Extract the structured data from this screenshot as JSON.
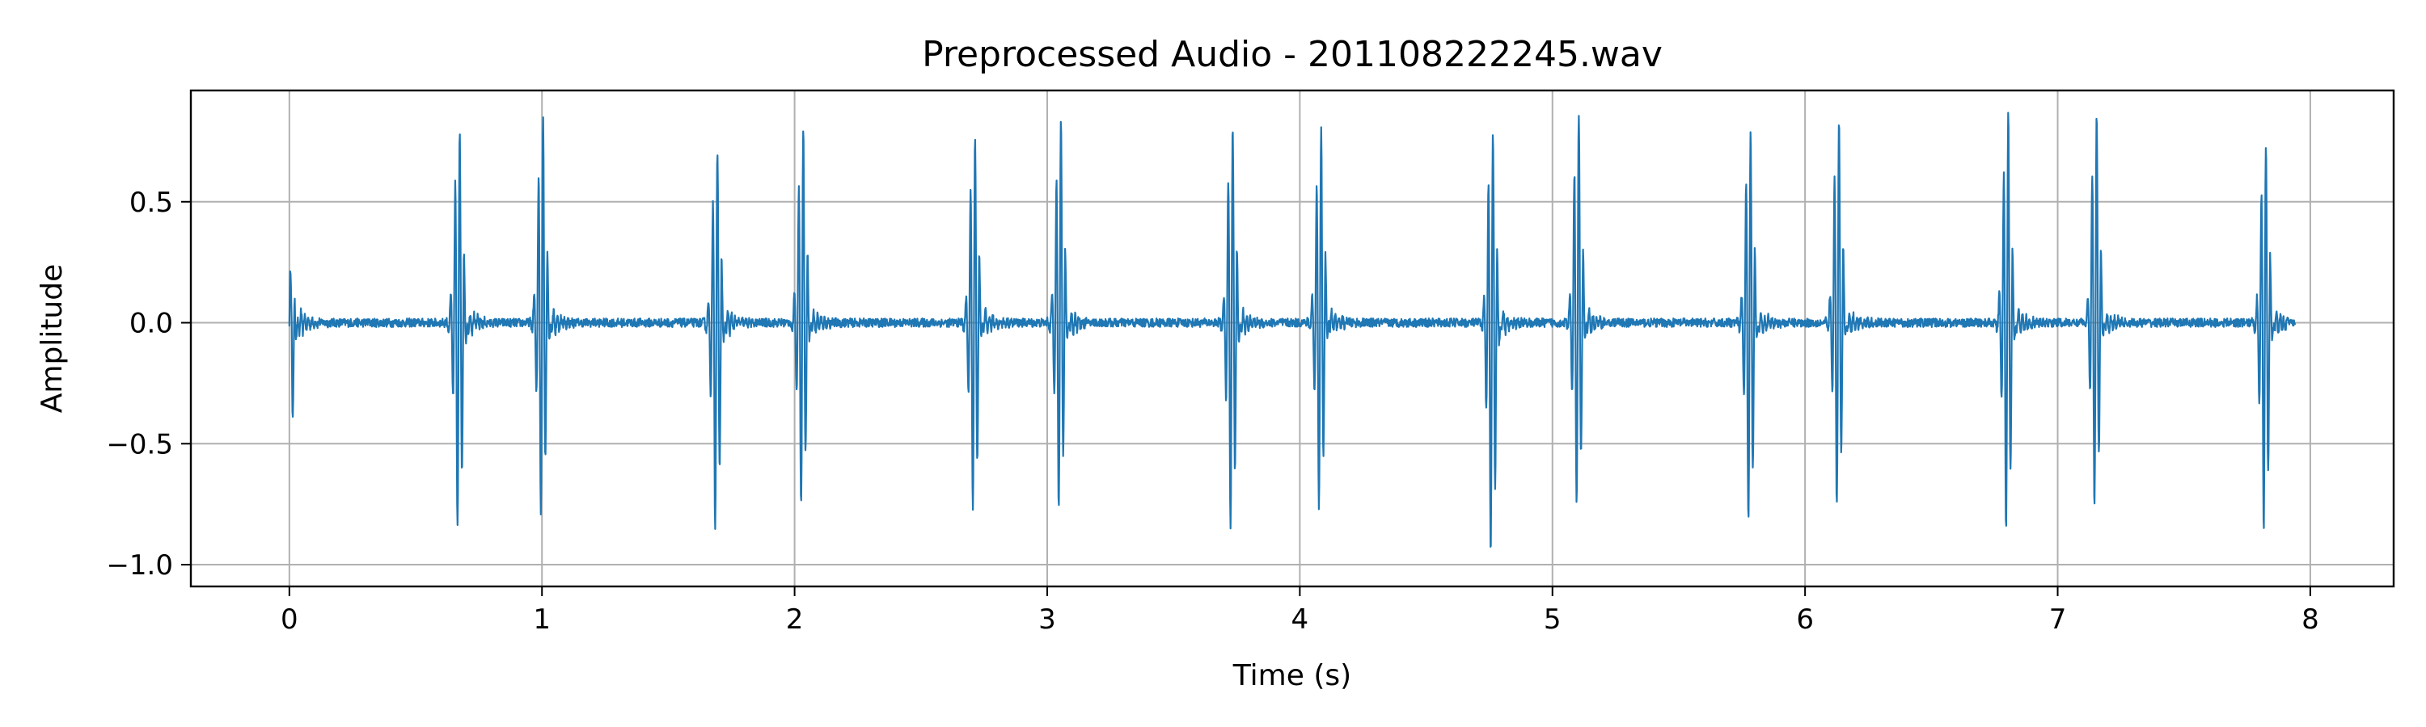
{
  "chart_data": {
    "type": "line",
    "title": "Preprocessed Audio - 201108222245.wav",
    "xlabel": "Time (s)",
    "ylabel": "Amplitude",
    "xlim": [
      -0.39,
      8.33
    ],
    "ylim": [
      -1.09,
      0.96
    ],
    "xticks": [
      0,
      1,
      2,
      3,
      4,
      5,
      6,
      7,
      8
    ],
    "xtick_labels": [
      "0",
      "1",
      "2",
      "3",
      "4",
      "5",
      "6",
      "7",
      "8"
    ],
    "yticks": [
      0.5,
      0.0,
      -0.5,
      -1.0
    ],
    "ytick_labels": [
      "0.5",
      "0.0",
      "−0.5",
      "−1.0"
    ],
    "grid": true,
    "line_color": "#1f77b4",
    "duration_s": 7.94,
    "series": [
      {
        "beats": [
          {
            "t": 0.0,
            "peak": 0.23,
            "trough": -0.59
          },
          {
            "t": 0.67,
            "peak": 0.83,
            "trough": -0.88
          },
          {
            "t": 1.0,
            "peak": 0.89,
            "trough": -0.81
          },
          {
            "t": 1.69,
            "peak": 0.72,
            "trough": -0.88
          },
          {
            "t": 2.03,
            "peak": 0.83,
            "trough": -0.79
          },
          {
            "t": 2.71,
            "peak": 0.79,
            "trough": -0.82
          },
          {
            "t": 3.05,
            "peak": 0.88,
            "trough": -0.8
          },
          {
            "t": 3.73,
            "peak": 0.85,
            "trough": -0.88
          },
          {
            "t": 4.08,
            "peak": 0.83,
            "trough": -0.79
          },
          {
            "t": 4.76,
            "peak": 0.81,
            "trough": -1.0
          },
          {
            "t": 5.1,
            "peak": 0.9,
            "trough": -0.79
          },
          {
            "t": 5.78,
            "peak": 0.84,
            "trough": -0.85
          },
          {
            "t": 6.13,
            "peak": 0.88,
            "trough": -0.79
          },
          {
            "t": 6.8,
            "peak": 0.9,
            "trough": -0.89
          },
          {
            "t": 7.15,
            "peak": 0.9,
            "trough": -0.79
          },
          {
            "t": 7.82,
            "peak": 0.78,
            "trough": -0.9
          }
        ],
        "noise_amplitude": 0.02
      }
    ]
  }
}
